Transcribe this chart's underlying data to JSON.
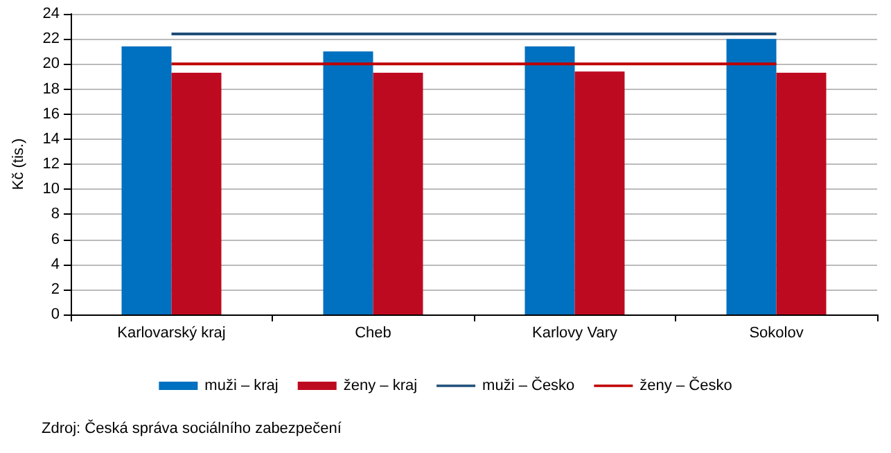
{
  "chart_data": {
    "type": "bar",
    "ylabel": "Kč (tis.)",
    "categories": [
      "Karlovarský kraj",
      "Cheb",
      "Karlovy Vary",
      "Sokolov"
    ],
    "series": [
      {
        "name": "muži – kraj",
        "color": "#0070c0",
        "values": [
          21.4,
          21.0,
          21.4,
          22.0
        ]
      },
      {
        "name": "ženy – kraj",
        "color": "#be0a20",
        "values": [
          19.3,
          19.3,
          19.4,
          19.3
        ]
      },
      {
        "name": "muži – Česko",
        "type": "line",
        "color": "#1f4e79",
        "values": [
          22.4,
          22.4,
          22.4,
          22.4
        ]
      },
      {
        "name": "ženy – Česko",
        "type": "line",
        "color": "#c00000",
        "values": [
          20.0,
          20.0,
          20.0,
          20.0
        ]
      }
    ],
    "ylim": [
      0,
      24
    ],
    "yticks": [
      0,
      2,
      4,
      6,
      8,
      10,
      12,
      14,
      16,
      18,
      20,
      22,
      24
    ],
    "grid": "y",
    "legend": "bottom",
    "marker": "none",
    "line_style": "solid",
    "annotations": [
      "Zdroj: Česká správa sociálního zabezpečení"
    ]
  }
}
